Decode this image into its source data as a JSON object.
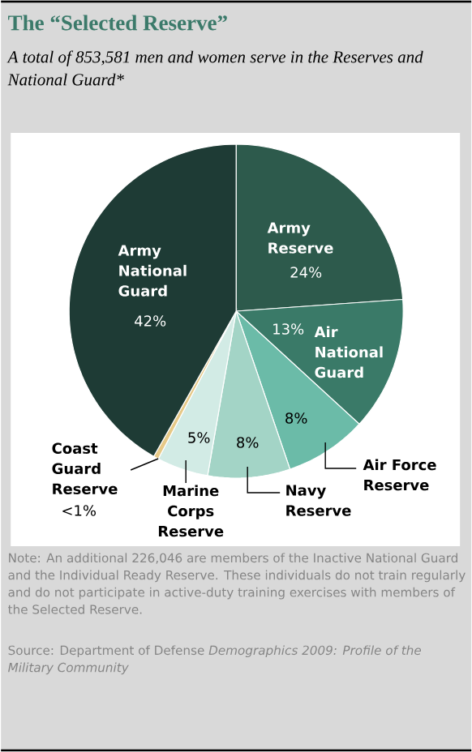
{
  "chart_data": {
    "type": "pie",
    "title": "The “Selected Reserve”",
    "subtitle": "A total of 853,581 men and women serve in the Reserves and National Guard*",
    "categories": [
      "Army Reserve",
      "Air National Guard",
      "Air Force Reserve",
      "Navy Reserve",
      "Marine Corps Reserve",
      "Coast Guard Reserve",
      "Army National Guard"
    ],
    "values": [
      24,
      13,
      8,
      8,
      5,
      0.5,
      42
    ],
    "value_labels": [
      "24%",
      "13%",
      "8%",
      "8%",
      "5%",
      "<1%",
      "42%"
    ],
    "colors": [
      "#2d5a4c",
      "#3a7a68",
      "#6bbba8",
      "#a3d4c6",
      "#d2ebe5",
      "#e6c987",
      "#1e3b35"
    ],
    "annotations": [
      "Note: An additional 226,046 are members of the Inactive National Guard and the Individual Ready Reserve. These individuals do not train regularly and do not participate in active-duty training exercises with members of the Selected Reserve.",
      "Source: Department of Defense *Demographics 2009: Profile of the Military Community*"
    ]
  }
}
